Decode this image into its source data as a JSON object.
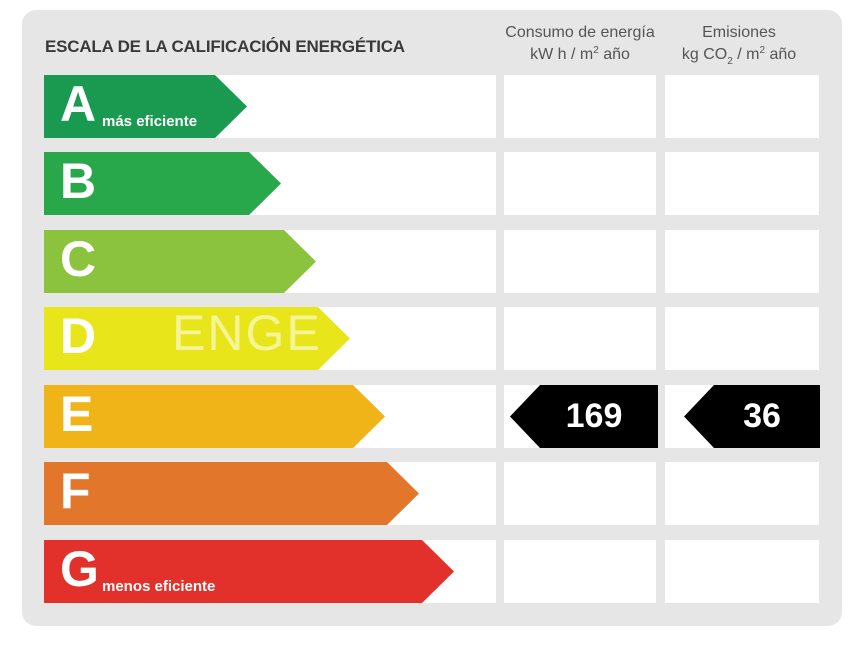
{
  "title": "ESCALA DE LA CALIFICACIÓN ENERGÉTICA",
  "columns": {
    "consumo": {
      "line1": "Consumo de energía",
      "line2_pre": "kW h  / m",
      "line2_sup": "2",
      "line2_post": " año"
    },
    "emisiones": {
      "line1": "Emisiones",
      "line2_pre": "kg CO",
      "line2_sub": "2",
      "line2_mid": "  / m",
      "line2_sup": "2",
      "line2_post": " año"
    }
  },
  "ratings": [
    {
      "letter": "A",
      "note": "más eficiente",
      "color": "#1a9a50"
    },
    {
      "letter": "B",
      "note": "",
      "color": "#28a84a"
    },
    {
      "letter": "C",
      "note": "",
      "color": "#8cc33e"
    },
    {
      "letter": "D",
      "note": "",
      "color": "#e8e61a"
    },
    {
      "letter": "E",
      "note": "",
      "color": "#f0b419"
    },
    {
      "letter": "F",
      "note": "",
      "color": "#e2772c"
    },
    {
      "letter": "G",
      "note": "menos eficiente",
      "color": "#e2312b"
    }
  ],
  "current_rating": "E",
  "consumo_value": "169",
  "emisiones_value": "36",
  "watermark": "ENGE"
}
